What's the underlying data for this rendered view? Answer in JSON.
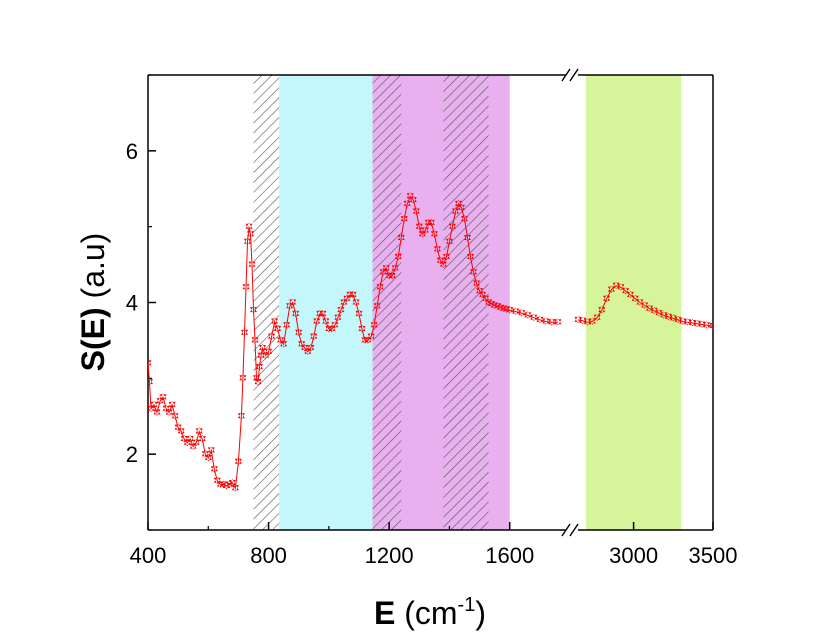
{
  "chart_data": {
    "type": "scatter",
    "title": "",
    "xlabel": {
      "bold": "E",
      "unit_pre": " (cm",
      "unit_sup": "-1",
      "unit_post": ")"
    },
    "ylabel": {
      "bold": "S(E)",
      "rest": " (a.u)"
    },
    "ylim": [
      1,
      7
    ],
    "y_ticks": [
      "2",
      "4",
      "6"
    ],
    "y_tick_values": [
      2,
      4,
      6
    ],
    "x_ticks_left": [
      "400",
      "800",
      "1200",
      "1600"
    ],
    "x_tick_values_left": [
      400,
      800,
      1200,
      1600
    ],
    "x_ticks_right": [
      "3000",
      "3500"
    ],
    "x_tick_values_right": [
      3000,
      3500
    ],
    "xlim_left": [
      400,
      1800
    ],
    "xlim_right": [
      2650,
      3500
    ],
    "axis_break_symbol": "//",
    "colors": {
      "series": "#ff0000",
      "cyan_band": "#c3f7fb",
      "violet_band": "#e8b0ee",
      "green_band": "#d6f59a",
      "hatch": "#555555"
    },
    "bands": [
      {
        "name": "hatched-band-1",
        "x0": 750,
        "x1": 835,
        "style": "hatch"
      },
      {
        "name": "cyan-band",
        "x0": 835,
        "x1": 1145,
        "style": "cyan"
      },
      {
        "name": "violet-band",
        "x0": 1145,
        "x1": 1600,
        "style": "violet"
      },
      {
        "name": "hatched-band-2",
        "x0": 1145,
        "x1": 1240,
        "style": "hatch"
      },
      {
        "name": "hatched-band-3",
        "x0": 1380,
        "x1": 1530,
        "style": "hatch"
      },
      {
        "name": "green-band",
        "x0": 2700,
        "x1": 3300,
        "style": "green"
      }
    ],
    "series": [
      {
        "name": "S(E)",
        "segment": "left",
        "points": [
          [
            400,
            3.2
          ],
          [
            405,
            2.95
          ],
          [
            410,
            2.6
          ],
          [
            420,
            2.65
          ],
          [
            430,
            2.55
          ],
          [
            440,
            2.7
          ],
          [
            450,
            2.75
          ],
          [
            460,
            2.6
          ],
          [
            470,
            2.55
          ],
          [
            480,
            2.65
          ],
          [
            490,
            2.5
          ],
          [
            500,
            2.35
          ],
          [
            510,
            2.3
          ],
          [
            520,
            2.2
          ],
          [
            530,
            2.15
          ],
          [
            540,
            2.2
          ],
          [
            550,
            2.1
          ],
          [
            560,
            2.15
          ],
          [
            570,
            2.3
          ],
          [
            580,
            2.2
          ],
          [
            590,
            2.0
          ],
          [
            600,
            1.95
          ],
          [
            610,
            2.05
          ],
          [
            620,
            1.8
          ],
          [
            630,
            1.65
          ],
          [
            640,
            1.6
          ],
          [
            650,
            1.6
          ],
          [
            660,
            1.58
          ],
          [
            670,
            1.6
          ],
          [
            680,
            1.62
          ],
          [
            690,
            1.55
          ],
          [
            700,
            1.9
          ],
          [
            710,
            2.5
          ],
          [
            715,
            3.0
          ],
          [
            720,
            3.6
          ],
          [
            725,
            4.2
          ],
          [
            730,
            4.8
          ],
          [
            735,
            5.0
          ],
          [
            740,
            4.9
          ],
          [
            745,
            4.5
          ],
          [
            750,
            3.9
          ],
          [
            755,
            3.5
          ],
          [
            760,
            3.0
          ],
          [
            765,
            2.95
          ],
          [
            770,
            3.15
          ],
          [
            775,
            3.3
          ],
          [
            780,
            3.4
          ],
          [
            790,
            3.3
          ],
          [
            800,
            3.35
          ],
          [
            810,
            3.55
          ],
          [
            820,
            3.75
          ],
          [
            830,
            3.65
          ],
          [
            840,
            3.5
          ],
          [
            850,
            3.45
          ],
          [
            860,
            3.7
          ],
          [
            870,
            3.95
          ],
          [
            880,
            4.0
          ],
          [
            890,
            3.85
          ],
          [
            900,
            3.6
          ],
          [
            910,
            3.45
          ],
          [
            920,
            3.4
          ],
          [
            930,
            3.35
          ],
          [
            940,
            3.4
          ],
          [
            950,
            3.55
          ],
          [
            960,
            3.75
          ],
          [
            970,
            3.85
          ],
          [
            980,
            3.85
          ],
          [
            990,
            3.75
          ],
          [
            1000,
            3.65
          ],
          [
            1010,
            3.65
          ],
          [
            1020,
            3.7
          ],
          [
            1030,
            3.8
          ],
          [
            1040,
            3.9
          ],
          [
            1050,
            4.0
          ],
          [
            1060,
            4.05
          ],
          [
            1070,
            4.1
          ],
          [
            1080,
            4.1
          ],
          [
            1090,
            4.0
          ],
          [
            1100,
            3.85
          ],
          [
            1110,
            3.65
          ],
          [
            1120,
            3.5
          ],
          [
            1130,
            3.5
          ],
          [
            1140,
            3.55
          ],
          [
            1150,
            3.7
          ],
          [
            1160,
            3.95
          ],
          [
            1170,
            4.2
          ],
          [
            1180,
            4.4
          ],
          [
            1190,
            4.45
          ],
          [
            1200,
            4.35
          ],
          [
            1210,
            4.35
          ],
          [
            1220,
            4.45
          ],
          [
            1230,
            4.6
          ],
          [
            1240,
            4.85
          ],
          [
            1250,
            5.1
          ],
          [
            1260,
            5.3
          ],
          [
            1270,
            5.4
          ],
          [
            1280,
            5.35
          ],
          [
            1290,
            5.2
          ],
          [
            1300,
            5.0
          ],
          [
            1310,
            4.9
          ],
          [
            1320,
            4.95
          ],
          [
            1330,
            5.05
          ],
          [
            1340,
            5.05
          ],
          [
            1350,
            4.9
          ],
          [
            1360,
            4.7
          ],
          [
            1370,
            4.55
          ],
          [
            1380,
            4.5
          ],
          [
            1390,
            4.6
          ],
          [
            1400,
            4.8
          ],
          [
            1410,
            5.0
          ],
          [
            1420,
            5.2
          ],
          [
            1430,
            5.3
          ],
          [
            1440,
            5.25
          ],
          [
            1450,
            5.1
          ],
          [
            1460,
            4.85
          ],
          [
            1470,
            4.6
          ],
          [
            1480,
            4.4
          ],
          [
            1490,
            4.25
          ],
          [
            1500,
            4.15
          ],
          [
            1510,
            4.1
          ],
          [
            1520,
            4.05
          ],
          [
            1530,
            4.0
          ],
          [
            1540,
            3.98
          ],
          [
            1550,
            3.96
          ],
          [
            1560,
            3.95
          ],
          [
            1570,
            3.93
          ],
          [
            1580,
            3.92
          ],
          [
            1590,
            3.91
          ],
          [
            1600,
            3.9
          ],
          [
            1620,
            3.88
          ],
          [
            1640,
            3.86
          ],
          [
            1660,
            3.83
          ],
          [
            1680,
            3.8
          ],
          [
            1700,
            3.77
          ],
          [
            1720,
            3.75
          ],
          [
            1740,
            3.74
          ],
          [
            1760,
            3.74
          ]
        ]
      },
      {
        "name": "S(E)",
        "segment": "right",
        "points": [
          [
            2650,
            3.77
          ],
          [
            2680,
            3.76
          ],
          [
            2710,
            3.74
          ],
          [
            2740,
            3.75
          ],
          [
            2770,
            3.8
          ],
          [
            2800,
            3.9
          ],
          [
            2830,
            4.05
          ],
          [
            2860,
            4.17
          ],
          [
            2890,
            4.22
          ],
          [
            2920,
            4.2
          ],
          [
            2950,
            4.15
          ],
          [
            2980,
            4.1
          ],
          [
            3010,
            4.05
          ],
          [
            3040,
            4.0
          ],
          [
            3070,
            3.96
          ],
          [
            3100,
            3.92
          ],
          [
            3130,
            3.89
          ],
          [
            3160,
            3.86
          ],
          [
            3190,
            3.83
          ],
          [
            3220,
            3.81
          ],
          [
            3250,
            3.79
          ],
          [
            3280,
            3.77
          ],
          [
            3310,
            3.75
          ],
          [
            3340,
            3.74
          ],
          [
            3370,
            3.73
          ],
          [
            3400,
            3.72
          ],
          [
            3430,
            3.71
          ],
          [
            3460,
            3.7
          ],
          [
            3500,
            3.69
          ]
        ]
      }
    ]
  }
}
